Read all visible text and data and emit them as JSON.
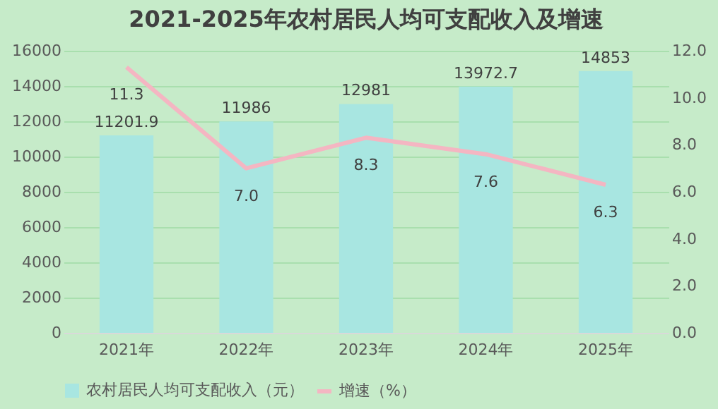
{
  "chart_data": {
    "type": "bar",
    "title": "2021-2025年农村居民人均可支配收入及增速",
    "categories": [
      "2021年",
      "2022年",
      "2023年",
      "2024年",
      "2025年"
    ],
    "series": [
      {
        "name": "农村居民人均可支配收入（元）",
        "color": "#a8e6e1",
        "values": [
          11201.9,
          11986,
          12981,
          13972.7,
          14853
        ],
        "value_labels": [
          "11201.9",
          "11986",
          "12981",
          "13972.7",
          "14853"
        ]
      },
      {
        "name": "增速（%）",
        "type": "line",
        "axis": "y2",
        "color": "#f4b6c2",
        "values": [
          11.3,
          7.0,
          8.3,
          7.6,
          6.3
        ],
        "value_labels": [
          "11.3",
          "7.0",
          "8.3",
          "7.6",
          "6.3"
        ]
      }
    ],
    "ylim": [
      0,
      16000
    ],
    "yticks": [
      0,
      2000,
      4000,
      6000,
      8000,
      10000,
      12000,
      14000,
      16000
    ],
    "y2lim": [
      0,
      12
    ],
    "y2ticks": [
      {
        "value": 0,
        "label": "0.0"
      },
      {
        "value": 2,
        "label": "2.0"
      },
      {
        "value": 4,
        "label": "4.0"
      },
      {
        "value": 6,
        "label": "6.0"
      },
      {
        "value": 8,
        "label": "8.0"
      },
      {
        "value": 10,
        "label": "10.0"
      },
      {
        "value": 12,
        "label": "12.0"
      }
    ],
    "grid": "y",
    "legend": "bottom",
    "marker": "none"
  }
}
